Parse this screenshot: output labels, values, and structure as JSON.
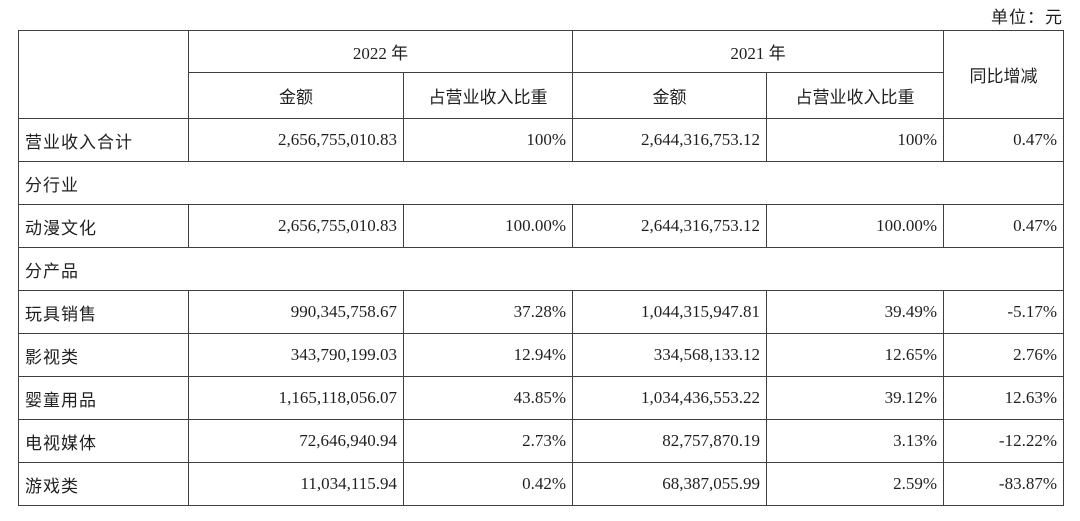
{
  "unit_label": "单位：元",
  "accent_colors": {
    "shaded_cell_bg": "#d4d4d4",
    "border": "#3f3f3f",
    "text": "#1f1f1f"
  },
  "table": {
    "header": {
      "year_2022": "2022 年",
      "year_2021": "2021 年",
      "amount_2022": "金额",
      "ratio_2022": "占营业收入比重",
      "amount_2021": "金额",
      "ratio_2021": "占营业收入比重",
      "yoy": "同比增减"
    },
    "rows": [
      {
        "label": "营业收入合计",
        "a2022": "2,656,755,010.83",
        "r2022": "100%",
        "a2021": "2,644,316,753.12",
        "r2021": "100%",
        "yoy": "0.47%"
      },
      {
        "label": "分行业"
      },
      {
        "label": "动漫文化",
        "a2022": "2,656,755,010.83",
        "r2022": "100.00%",
        "a2021": "2,644,316,753.12",
        "r2021": "100.00%",
        "yoy": "0.47%"
      },
      {
        "label": "分产品"
      },
      {
        "label": "玩具销售",
        "a2022": "990,345,758.67",
        "r2022": "37.28%",
        "a2021": "1,044,315,947.81",
        "r2021": "39.49%",
        "yoy": "-5.17%"
      },
      {
        "label": "影视类",
        "a2022": "343,790,199.03",
        "r2022": "12.94%",
        "a2021": "334,568,133.12",
        "r2021": "12.65%",
        "yoy": "2.76%"
      },
      {
        "label": "婴童用品",
        "a2022": "1,165,118,056.07",
        "r2022": "43.85%",
        "a2021": "1,034,436,553.22",
        "r2021": "39.12%",
        "yoy": "12.63%"
      },
      {
        "label": "电视媒体",
        "a2022": "72,646,940.94",
        "r2022": "2.73%",
        "a2021": "82,757,870.19",
        "r2021": "3.13%",
        "yoy": "-12.22%"
      },
      {
        "label": "游戏类",
        "a2022": "11,034,115.94",
        "r2022": "0.42%",
        "a2021": "68,387,055.99",
        "r2021": "2.59%",
        "yoy": "-83.87%"
      }
    ]
  }
}
